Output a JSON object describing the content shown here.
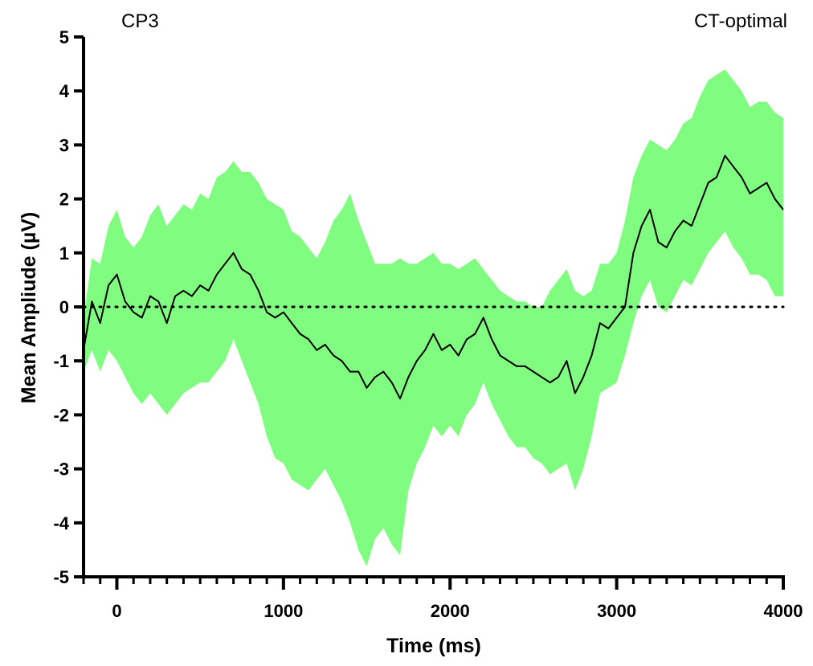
{
  "chart_data": {
    "type": "area",
    "channel_label": "CP3",
    "condition_label": "CT-optimal",
    "xlabel": "Time (ms)",
    "ylabel": "Mean Ampliude (µV)",
    "xlim": [
      -200,
      4000
    ],
    "ylim": [
      -5,
      5
    ],
    "x_ticks": [
      0,
      1000,
      2000,
      3000,
      4000
    ],
    "y_ticks": [
      5,
      4,
      3,
      2,
      1,
      0,
      -1,
      -2,
      -3,
      -4,
      -5
    ],
    "x_minor_step": 100,
    "zero_line": "dotted",
    "legend": "none",
    "colors": {
      "band": "#80fc80",
      "line": "#000000"
    },
    "series": [
      {
        "x": [
          -200,
          -150,
          -100,
          -50,
          0,
          50,
          100,
          150,
          200,
          250,
          300,
          350,
          400,
          450,
          500,
          550,
          600,
          650,
          700,
          750,
          800,
          850,
          900,
          950,
          1000,
          1050,
          1100,
          1150,
          1200,
          1250,
          1300,
          1350,
          1400,
          1450,
          1500,
          1550,
          1600,
          1650,
          1700,
          1750,
          1800,
          1850,
          1900,
          1950,
          2000,
          2050,
          2100,
          2150,
          2200,
          2250,
          2300,
          2350,
          2400,
          2450,
          2500,
          2550,
          2600,
          2650,
          2700,
          2750,
          2800,
          2850,
          2900,
          2950,
          3000,
          3050,
          3100,
          3150,
          3200,
          3250,
          3300,
          3350,
          3400,
          3450,
          3500,
          3550,
          3600,
          3650,
          3700,
          3750,
          3800,
          3850,
          3900,
          3950,
          4000
        ],
        "mean": [
          -0.8,
          0.1,
          -0.3,
          0.4,
          0.6,
          0.1,
          -0.1,
          -0.2,
          0.2,
          0.1,
          -0.3,
          0.2,
          0.3,
          0.2,
          0.4,
          0.3,
          0.6,
          0.8,
          1.0,
          0.7,
          0.6,
          0.3,
          -0.1,
          -0.2,
          -0.1,
          -0.3,
          -0.5,
          -0.6,
          -0.8,
          -0.7,
          -0.9,
          -1.0,
          -1.2,
          -1.2,
          -1.5,
          -1.3,
          -1.2,
          -1.4,
          -1.7,
          -1.3,
          -1.0,
          -0.8,
          -0.5,
          -0.8,
          -0.7,
          -0.9,
          -0.6,
          -0.5,
          -0.2,
          -0.6,
          -0.9,
          -1.0,
          -1.1,
          -1.1,
          -1.2,
          -1.3,
          -1.4,
          -1.3,
          -1.0,
          -1.6,
          -1.3,
          -0.9,
          -0.3,
          -0.4,
          -0.2,
          0.0,
          1.0,
          1.5,
          1.8,
          1.2,
          1.1,
          1.4,
          1.6,
          1.5,
          1.9,
          2.3,
          2.4,
          2.8,
          2.6,
          2.4,
          2.1,
          2.2,
          2.3,
          2.0,
          1.8
        ],
        "upper": [
          -0.2,
          0.9,
          0.8,
          1.5,
          1.8,
          1.3,
          1.1,
          1.3,
          1.7,
          1.9,
          1.5,
          1.7,
          1.9,
          1.8,
          2.1,
          2.0,
          2.4,
          2.5,
          2.7,
          2.5,
          2.5,
          2.3,
          2.0,
          1.9,
          1.8,
          1.4,
          1.3,
          1.1,
          0.9,
          1.2,
          1.6,
          1.8,
          2.1,
          1.6,
          1.2,
          0.8,
          0.8,
          0.8,
          0.9,
          0.8,
          0.8,
          0.9,
          1.0,
          0.8,
          0.8,
          0.7,
          0.8,
          0.9,
          0.7,
          0.5,
          0.3,
          0.2,
          0.1,
          0.1,
          0.0,
          0.0,
          0.3,
          0.5,
          0.7,
          0.3,
          0.2,
          0.3,
          0.8,
          0.8,
          1.0,
          1.6,
          2.4,
          2.8,
          3.1,
          3.0,
          2.9,
          3.1,
          3.4,
          3.5,
          3.9,
          4.2,
          4.3,
          4.4,
          4.2,
          4.0,
          3.7,
          3.8,
          3.8,
          3.6,
          3.5
        ],
        "lower": [
          -1.2,
          -0.8,
          -1.2,
          -0.8,
          -1.0,
          -1.3,
          -1.6,
          -1.8,
          -1.6,
          -1.8,
          -2.0,
          -1.8,
          -1.6,
          -1.5,
          -1.4,
          -1.4,
          -1.2,
          -1.0,
          -0.6,
          -1.0,
          -1.4,
          -1.8,
          -2.4,
          -2.8,
          -2.9,
          -3.2,
          -3.3,
          -3.4,
          -3.2,
          -3.0,
          -3.3,
          -3.6,
          -4.0,
          -4.5,
          -4.8,
          -4.3,
          -4.1,
          -4.4,
          -4.6,
          -3.4,
          -2.9,
          -2.6,
          -2.2,
          -2.4,
          -2.2,
          -2.4,
          -2.0,
          -1.8,
          -1.4,
          -1.8,
          -2.1,
          -2.4,
          -2.6,
          -2.6,
          -2.8,
          -2.9,
          -3.1,
          -3.0,
          -2.9,
          -3.4,
          -3.0,
          -2.4,
          -1.6,
          -1.5,
          -1.4,
          -0.9,
          -0.3,
          0.2,
          0.5,
          0.0,
          -0.1,
          0.2,
          0.5,
          0.4,
          0.7,
          1.0,
          1.2,
          1.4,
          1.1,
          0.9,
          0.6,
          0.6,
          0.5,
          0.2,
          0.2
        ]
      }
    ]
  }
}
